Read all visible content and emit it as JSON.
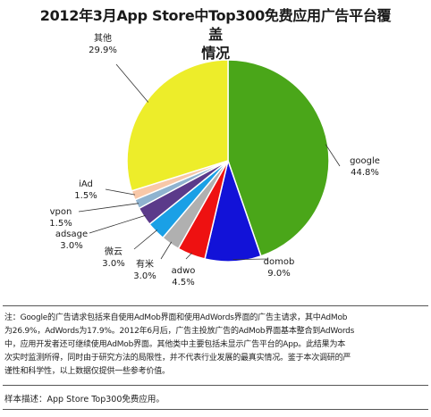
{
  "chart_data": {
    "type": "pie",
    "title": "2012年3月App Store中Top300免费应用广告平台覆盖情况",
    "title_lines": [
      "2012年3月App Store中Top300免费应用广告平台覆盖",
      "情况"
    ],
    "slices": [
      {
        "name": "google",
        "value": 44.8,
        "label": "44.8%",
        "color": "#4aa619"
      },
      {
        "name": "domob",
        "value": 9.0,
        "label": "9.0%",
        "color": "#1212d8"
      },
      {
        "name": "adwo",
        "value": 4.5,
        "label": "4.5%",
        "color": "#ee1111"
      },
      {
        "name": "有米",
        "value": 3.0,
        "label": "3.0%",
        "color": "#b0b0b0"
      },
      {
        "name": "微云",
        "value": 3.0,
        "label": "3.0%",
        "color": "#1aa0e6"
      },
      {
        "name": "adsage",
        "value": 3.0,
        "label": "3.0%",
        "color": "#5b3a8a"
      },
      {
        "name": "vpon",
        "value": 1.5,
        "label": "1.5%",
        "color": "#8fb3cf"
      },
      {
        "name": "iAd",
        "value": 1.5,
        "label": "1.5%",
        "color": "#f8c8a8"
      },
      {
        "name": "其他",
        "value": 29.9,
        "label": "29.9%",
        "color": "#eded2a"
      }
    ]
  },
  "notes": {
    "note_lines": [
      "注：Google的广告请求包括来自使用AdMob界面和使用AdWords界面的广告主请求，其中AdMob",
      "为26.9%，AdWords为17.9%。2012年6月后，广告主投放广告的AdMob界面基本整合到AdWords",
      "中，应用开发者还可继续使用AdMob界面。其他类中主要包括未显示广告平台的App。此结果为本",
      "次实时监测所得，同时由于研究方法的局限性，并不代表行业发展的最真实情况。鉴于本次调研的严",
      "谨性和科学性，以上数据仅提供一些参考价值。"
    ],
    "sample": "样本描述：App Store Top300免费应用。"
  }
}
